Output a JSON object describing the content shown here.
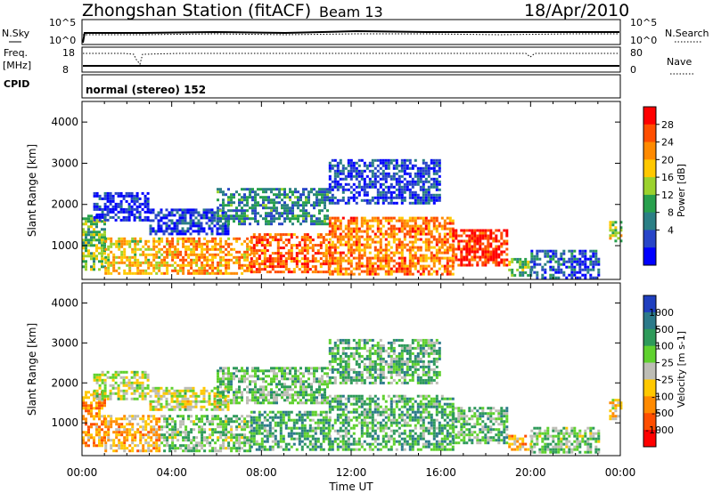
{
  "header": {
    "station": "Zhongshan Station (fitACF)",
    "beam": "Beam 13",
    "date": "18/Apr/2010"
  },
  "status_panels": {
    "nsky_label": "N.Sky",
    "nsky_ticks": [
      "10^5",
      "10^0"
    ],
    "nsearch_label": "N.Search",
    "nsearch_ticks": [
      "10^5",
      "10^0"
    ],
    "freq_label": "Freq.",
    "freq_unit": "[MHz]",
    "freq_ticks": [
      "18",
      "8"
    ],
    "nave_label": "Nave",
    "nave_ticks": [
      "80",
      "0"
    ],
    "cpid_label": "CPID",
    "cpid_text": "normal (stereo) 152"
  },
  "chart_data": [
    {
      "type": "heatmap",
      "name": "power",
      "ylabel": "Slant Range [km]",
      "xlim_hours": [
        0,
        24
      ],
      "ylim": [
        180,
        4500
      ],
      "yticks": [
        1000,
        2000,
        3000,
        4000
      ],
      "x_tick_labels": [
        "00:00",
        "04:00",
        "08:00",
        "12:00",
        "16:00",
        "20:00",
        "00:00"
      ],
      "colorbar": {
        "label": "Power [dB]",
        "ticks": [
          "28",
          "24",
          "20",
          "16",
          "12",
          "8",
          "4"
        ],
        "colors": [
          "#ff0000",
          "#ff4e00",
          "#ff8a00",
          "#ffc800",
          "#9bd22d",
          "#28a04d",
          "#2b7f85",
          "#2845c8",
          "#0000ff"
        ]
      },
      "echo_regions": [
        {
          "t": [
            0.0,
            1.0
          ],
          "r": [
            400,
            1750
          ],
          "level": 0.45
        },
        {
          "t": [
            1.0,
            3.5
          ],
          "r": [
            300,
            1200
          ],
          "level": 0.6
        },
        {
          "t": [
            3.5,
            7.5
          ],
          "r": [
            300,
            1200
          ],
          "level": 0.7
        },
        {
          "t": [
            7.5,
            11.0
          ],
          "r": [
            350,
            1300
          ],
          "level": 0.8
        },
        {
          "t": [
            11.0,
            16.5
          ],
          "r": [
            300,
            1700
          ],
          "level": 0.75
        },
        {
          "t": [
            16.5,
            19.0
          ],
          "r": [
            500,
            1400
          ],
          "level": 0.9
        },
        {
          "t": [
            19.0,
            20.0
          ],
          "r": [
            300,
            700
          ],
          "level": 0.4
        },
        {
          "t": [
            0.5,
            3.0
          ],
          "r": [
            1600,
            2300
          ],
          "level": 0.1
        },
        {
          "t": [
            3.0,
            6.5
          ],
          "r": [
            1300,
            1900
          ],
          "level": 0.12
        },
        {
          "t": [
            6.0,
            11.0
          ],
          "r": [
            1500,
            2400
          ],
          "level": 0.3
        },
        {
          "t": [
            11.0,
            16.0
          ],
          "r": [
            2000,
            3100
          ],
          "level": 0.15
        },
        {
          "t": [
            20.0,
            23.0
          ],
          "r": [
            250,
            900
          ],
          "level": 0.2
        },
        {
          "t": [
            23.5,
            24.0
          ],
          "r": [
            1100,
            1600
          ],
          "level": 0.5
        }
      ]
    },
    {
      "type": "heatmap",
      "name": "velocity",
      "ylabel": "Slant Range [km]",
      "xlabel": "Time UT",
      "xlim_hours": [
        0,
        24
      ],
      "ylim": [
        180,
        4500
      ],
      "yticks": [
        1000,
        2000,
        3000,
        4000
      ],
      "x_tick_labels": [
        "00:00",
        "04:00",
        "08:00",
        "12:00",
        "16:00",
        "20:00",
        "00:00"
      ],
      "colorbar": {
        "label": "Velocity [m s-1]",
        "ticks": [
          "1000",
          "500",
          "100",
          "25",
          "-25",
          "-100",
          "-500",
          "-1000"
        ],
        "colors": [
          "#1f3fbf",
          "#2c7a8a",
          "#2e9a5a",
          "#5fd12e",
          "#bdbdb5",
          "#ffc800",
          "#ff8a00",
          "#ff4e00",
          "#ff0000"
        ]
      },
      "echo_regions": [
        {
          "t": [
            0.0,
            1.0
          ],
          "r": [
            400,
            1800
          ],
          "level": 0.3
        },
        {
          "t": [
            1.0,
            3.5
          ],
          "r": [
            300,
            1200
          ],
          "level": 0.35
        },
        {
          "t": [
            3.5,
            7.5
          ],
          "r": [
            300,
            1200
          ],
          "level": 0.6
        },
        {
          "t": [
            7.5,
            11.0
          ],
          "r": [
            350,
            1300
          ],
          "level": 0.7
        },
        {
          "t": [
            11.0,
            16.5
          ],
          "r": [
            300,
            1700
          ],
          "level": 0.68
        },
        {
          "t": [
            16.5,
            19.0
          ],
          "r": [
            500,
            1400
          ],
          "level": 0.66
        },
        {
          "t": [
            19.0,
            20.0
          ],
          "r": [
            300,
            700
          ],
          "level": 0.35
        },
        {
          "t": [
            0.5,
            3.0
          ],
          "r": [
            1600,
            2300
          ],
          "level": 0.5
        },
        {
          "t": [
            3.0,
            6.5
          ],
          "r": [
            1300,
            1900
          ],
          "level": 0.5
        },
        {
          "t": [
            6.0,
            11.0
          ],
          "r": [
            1500,
            2400
          ],
          "level": 0.62
        },
        {
          "t": [
            11.0,
            16.0
          ],
          "r": [
            2000,
            3100
          ],
          "level": 0.65
        },
        {
          "t": [
            20.0,
            23.0
          ],
          "r": [
            250,
            900
          ],
          "level": 0.6
        },
        {
          "t": [
            23.5,
            24.0
          ],
          "r": [
            1100,
            1600
          ],
          "level": 0.4
        }
      ]
    }
  ]
}
